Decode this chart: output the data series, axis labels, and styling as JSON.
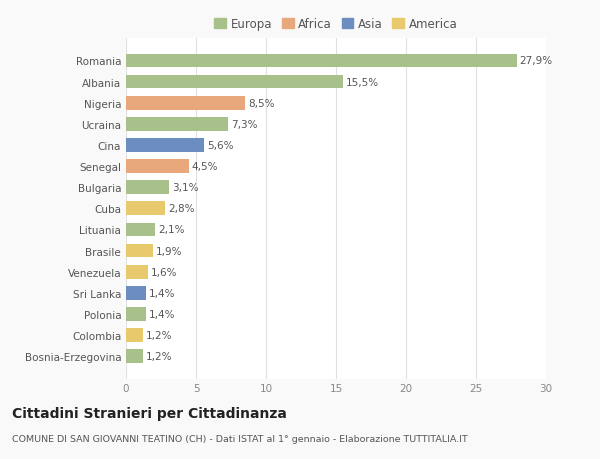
{
  "countries": [
    "Romania",
    "Albania",
    "Nigeria",
    "Ucraina",
    "Cina",
    "Senegal",
    "Bulgaria",
    "Cuba",
    "Lituania",
    "Brasile",
    "Venezuela",
    "Sri Lanka",
    "Polonia",
    "Colombia",
    "Bosnia-Erzegovina"
  ],
  "values": [
    27.9,
    15.5,
    8.5,
    7.3,
    5.6,
    4.5,
    3.1,
    2.8,
    2.1,
    1.9,
    1.6,
    1.4,
    1.4,
    1.2,
    1.2
  ],
  "labels": [
    "27,9%",
    "15,5%",
    "8,5%",
    "7,3%",
    "5,6%",
    "4,5%",
    "3,1%",
    "2,8%",
    "2,1%",
    "1,9%",
    "1,6%",
    "1,4%",
    "1,4%",
    "1,2%",
    "1,2%"
  ],
  "colors": [
    "#a8c08a",
    "#a8c08a",
    "#e8a87c",
    "#a8c08a",
    "#6b8dbf",
    "#e8a87c",
    "#a8c08a",
    "#e8c96b",
    "#a8c08a",
    "#e8c96b",
    "#e8c96b",
    "#6b8dbf",
    "#a8c08a",
    "#e8c96b",
    "#a8c08a"
  ],
  "legend_labels": [
    "Europa",
    "Africa",
    "Asia",
    "America"
  ],
  "legend_colors": [
    "#a8c08a",
    "#e8a87c",
    "#6b8dbf",
    "#e8c96b"
  ],
  "xlim": [
    0,
    30
  ],
  "xticks": [
    0,
    5,
    10,
    15,
    20,
    25,
    30
  ],
  "title": "Cittadini Stranieri per Cittadinanza",
  "subtitle": "COMUNE DI SAN GIOVANNI TEATINO (CH) - Dati ISTAT al 1° gennaio - Elaborazione TUTTITALIA.IT",
  "bg_color": "#f9f9f9",
  "plot_bg_color": "#ffffff",
  "grid_color": "#e0e0e0",
  "bar_height": 0.65,
  "label_fontsize": 7.5,
  "tick_fontsize": 7.5,
  "ytick_fontsize": 7.5,
  "title_fontsize": 10,
  "subtitle_fontsize": 6.8,
  "legend_fontsize": 8.5
}
